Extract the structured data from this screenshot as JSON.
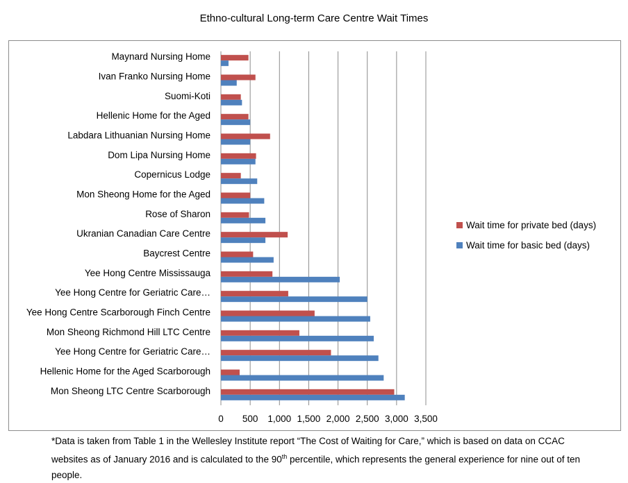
{
  "chart_data": {
    "type": "bar",
    "orientation": "horizontal",
    "title": "Ethno-cultural Long-term Care Centre Wait Times",
    "categories": [
      "Maynard Nursing Home",
      "Ivan Franko Nursing Home",
      "Suomi-Koti",
      "Hellenic Home for the Aged",
      "Labdara Lithuanian Nursing Home",
      "Dom Lipa Nursing Home",
      "Copernicus Lodge",
      "Mon Sheong Home for the Aged",
      "Rose of Sharon",
      "Ukranian Canadian Care Centre",
      "Baycrest Centre",
      "Yee Hong Centre Mississauga",
      "Yee Hong Centre for Geriatric Care…",
      "Yee Hong Centre Scarborough Finch Centre",
      "Mon Sheong Richmond Hill LTC Centre",
      "Yee Hong Centre for Geriatric Care…",
      "Hellenic Home for the Aged Scarborough",
      "Mon Sheong LTC Centre Scarborough"
    ],
    "series": [
      {
        "name": "Wait time for private bed (days)",
        "color": "#c0504d",
        "values": [
          470,
          590,
          340,
          470,
          840,
          600,
          340,
          500,
          480,
          1140,
          550,
          880,
          1150,
          1600,
          1340,
          1880,
          320,
          2960
        ]
      },
      {
        "name": "Wait time for basic bed (days)",
        "color": "#4f81bd",
        "values": [
          130,
          270,
          360,
          500,
          500,
          590,
          620,
          740,
          760,
          760,
          900,
          2030,
          2500,
          2550,
          2610,
          2690,
          2780,
          3140
        ]
      }
    ],
    "xlim": [
      0,
      3500
    ],
    "xticks": [
      "0",
      "500",
      "1,000",
      "1,500",
      "2,000",
      "2,500",
      "3,000",
      "3,500"
    ],
    "grid": "vertical",
    "legend_position": "right"
  },
  "footnote": {
    "part1": "*Data is taken from Table 1 in the Wellesley Institute report “The Cost of Waiting for Care,” which is based on data on CCAC websites as of January 2016 and is calculated to the 90",
    "sup": "th",
    "part2": " percentile, which represents the general experience for nine out of ten people."
  }
}
